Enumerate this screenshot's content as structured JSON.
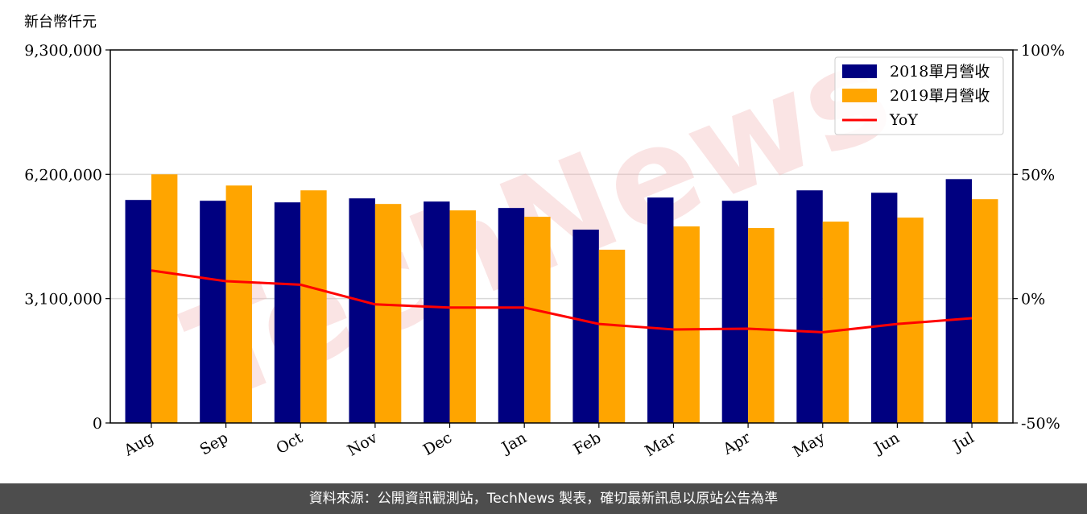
{
  "unit_label": "新台幣仟元",
  "watermark": "TechNews",
  "footer": "資料來源：公開資訊觀測站，TechNews 製表，確切最新訊息以原站公告為準",
  "colors": {
    "bar2018": "#000080",
    "bar2019": "#ffa500",
    "yoy": "#ff0000",
    "grid": "#d9d9d9",
    "watermark": "#f2b3b3"
  },
  "chart_data": {
    "type": "bar",
    "categories": [
      "Aug",
      "Sep",
      "Oct",
      "Nov",
      "Dec",
      "Jan",
      "Feb",
      "Mar",
      "Apr",
      "May",
      "Jun",
      "Jul"
    ],
    "series": [
      {
        "name": "2018單月營收",
        "type": "bar",
        "axis": "left",
        "values": [
          5560000,
          5540000,
          5500000,
          5600000,
          5520000,
          5360000,
          4820000,
          5620000,
          5540000,
          5800000,
          5740000,
          6080000
        ]
      },
      {
        "name": "2019單月營收",
        "type": "bar",
        "axis": "left",
        "values": [
          6200000,
          5920000,
          5800000,
          5460000,
          5300000,
          5140000,
          4320000,
          4900000,
          4860000,
          5020000,
          5120000,
          5580000
        ]
      },
      {
        "name": "YoY",
        "type": "line",
        "axis": "right",
        "values": [
          11.3,
          7.0,
          5.6,
          -2.3,
          -3.6,
          -3.6,
          -10.2,
          -12.4,
          -12.1,
          -13.5,
          -10.2,
          -7.9
        ]
      }
    ],
    "left_axis": {
      "ylim": [
        0,
        9300000
      ],
      "ticks": [
        "0",
        "3,100,000",
        "6,200,000",
        "9,300,000"
      ]
    },
    "right_axis": {
      "ylim": [
        -50,
        100
      ],
      "ticks": [
        "-50%",
        "0%",
        "50%",
        "100%"
      ]
    },
    "grid": "horizontal",
    "legend": "top-right"
  }
}
